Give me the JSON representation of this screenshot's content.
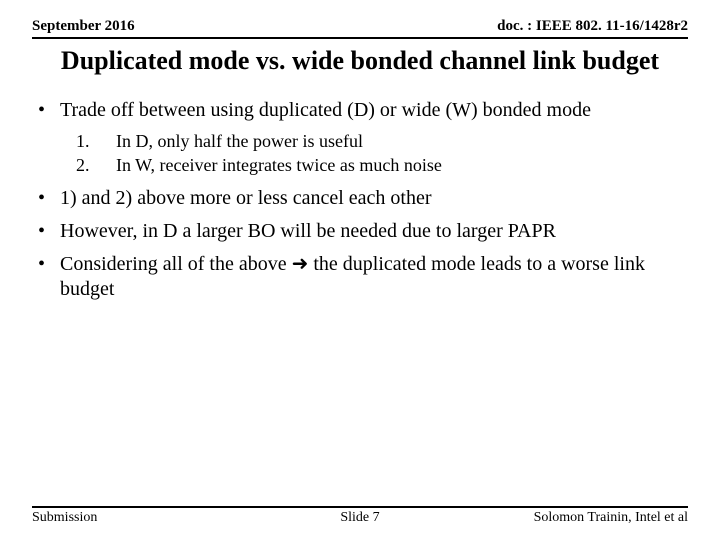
{
  "header": {
    "left": "September 2016",
    "right": "doc. : IEEE 802. 11-16/1428r2"
  },
  "title": "Duplicated mode vs. wide bonded channel link budget",
  "bullets": [
    {
      "text": "Trade off between using duplicated (D) or wide (W) bonded mode",
      "sub": [
        "In D, only half the power is useful",
        "In W, receiver integrates twice as much noise"
      ]
    },
    {
      "text": "1) and 2) above more or less cancel each other"
    },
    {
      "text": "However, in D a larger BO will be needed due to larger PAPR"
    },
    {
      "text": "Considering all of the above ➜ the duplicated mode leads to a worse link budget"
    }
  ],
  "footer": {
    "left": "Submission",
    "center": "Slide 7",
    "right": "Solomon Trainin, Intel et al"
  }
}
